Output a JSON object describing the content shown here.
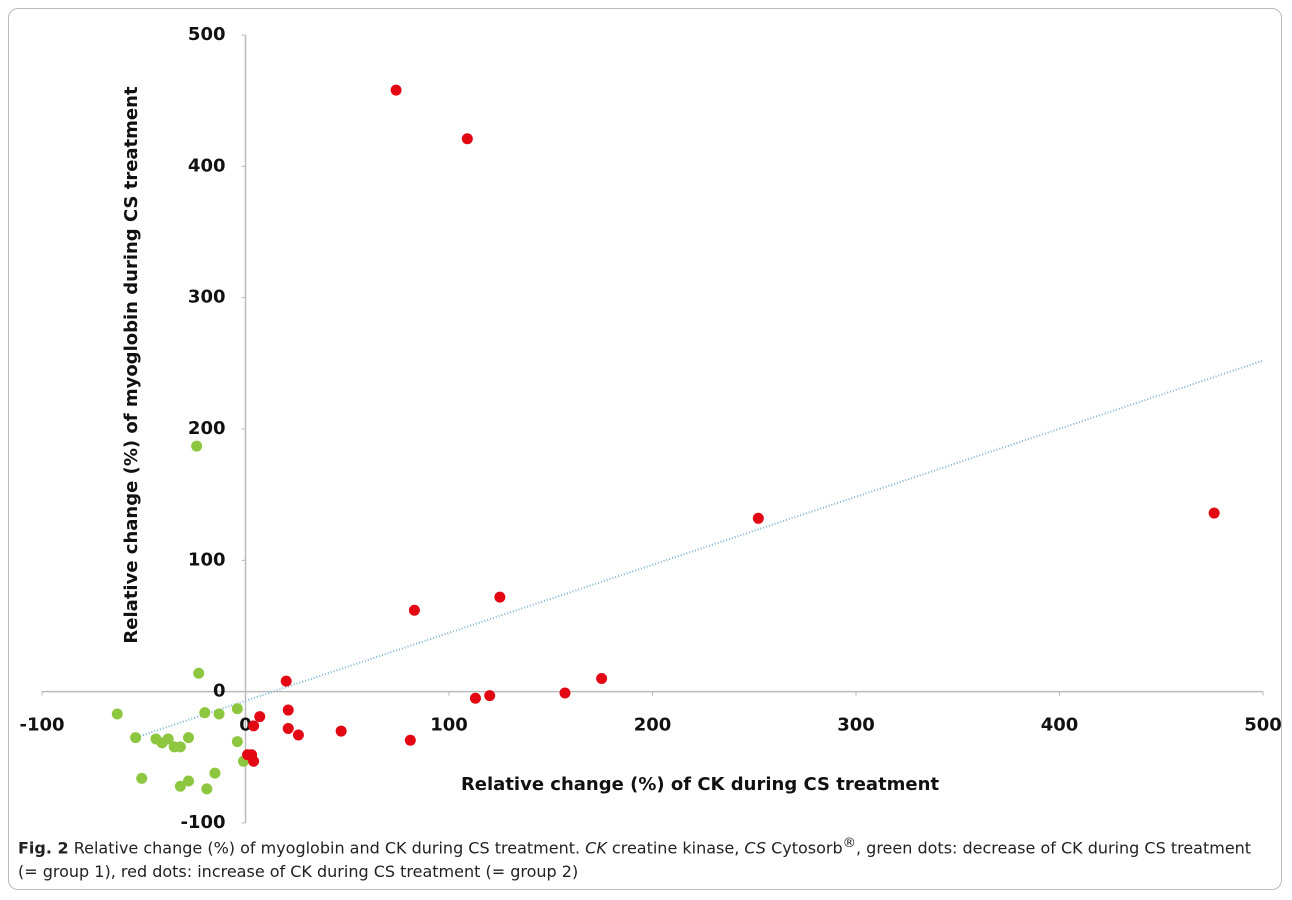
{
  "chart_data": {
    "type": "scatter",
    "x_label": "Relative change (%) of CK during CS treatment",
    "y_label": "Relative change (%) of myoglobin during CS treatment",
    "xlim": [
      -100,
      500
    ],
    "ylim": [
      -100,
      500
    ],
    "xticks": [
      -100,
      0,
      100,
      200,
      300,
      400,
      500
    ],
    "yticks": [
      -100,
      0,
      100,
      200,
      300,
      400,
      500
    ],
    "grid": false,
    "series": [
      {
        "color": "#8dc63f",
        "x": [
          -24,
          -23,
          -63,
          -54,
          -44,
          -41,
          -38,
          -35,
          -32,
          -28,
          -20,
          -13,
          -4,
          -4,
          -1,
          -51,
          -32,
          -28,
          -19,
          -15
        ],
        "values": [
          187,
          14,
          -17,
          -35,
          -36,
          -39,
          -36,
          -42,
          -42,
          -35,
          -16,
          -17,
          -13,
          -38,
          -53,
          -66,
          -72,
          -68,
          -74,
          -62
        ]
      },
      {
        "color": "#e30613",
        "x": [
          74,
          109,
          476,
          252,
          125,
          83,
          20,
          175,
          157,
          120,
          113,
          7,
          21,
          21,
          26,
          47,
          81,
          4,
          1,
          3,
          4
        ],
        "values": [
          458,
          421,
          136,
          132,
          72,
          62,
          8,
          10,
          -1,
          -3,
          -5,
          -19,
          -14,
          -28,
          -33,
          -30,
          -37,
          -26,
          -48,
          -48,
          -53
        ]
      }
    ],
    "trendline": {
      "color": "#7fb3d5",
      "x": [
        -56,
        500
      ],
      "y": [
        -36,
        252
      ]
    }
  },
  "caption": {
    "label": "Fig. 2",
    "parts": [
      " Relative change (%) of myoglobin and CK during CS treatment. ",
      "CK",
      " creatine kinase, ",
      "CS",
      " Cytosorb",
      "®",
      ", green dots: decrease of CK during CS treatment (= group 1), red dots: increase of CK during CS treatment (= group 2)"
    ]
  }
}
